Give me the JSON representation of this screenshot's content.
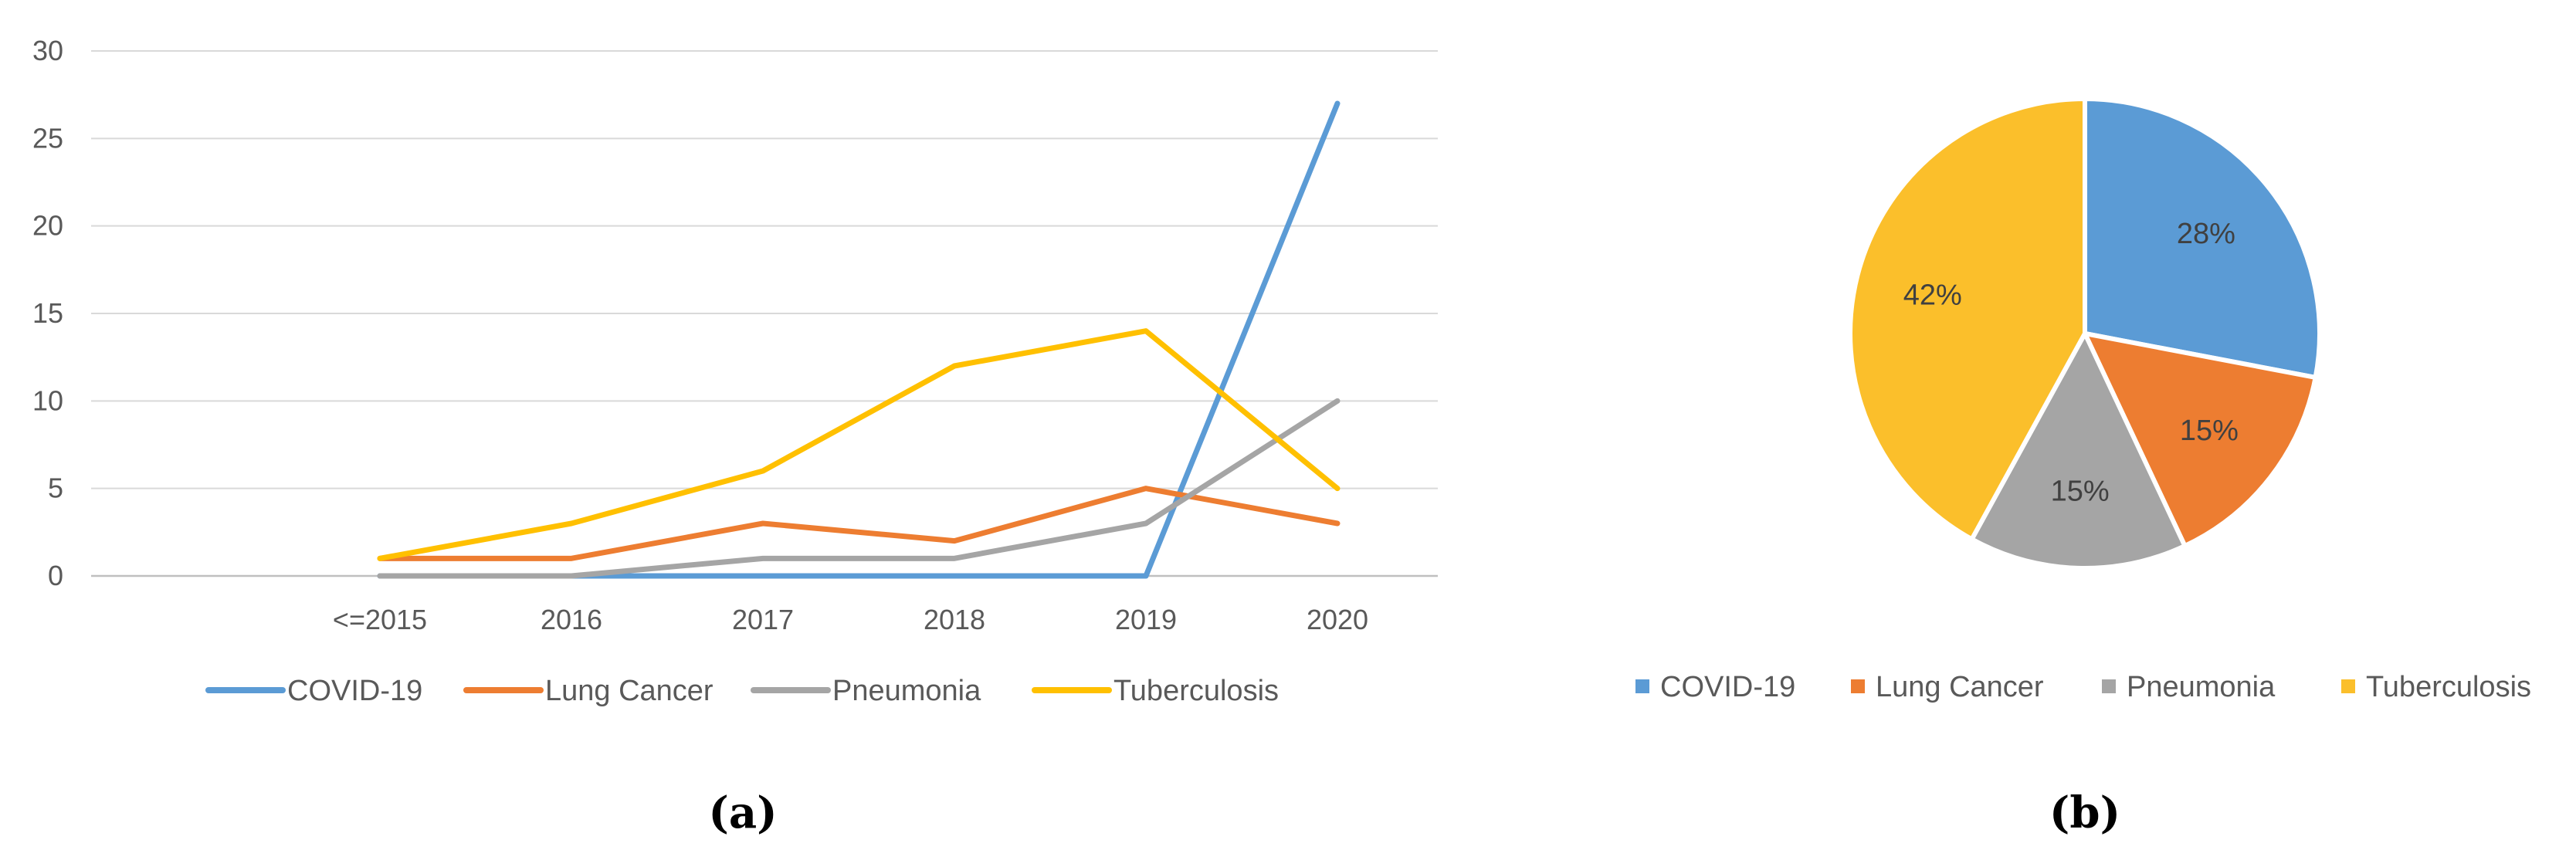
{
  "chart_data": [
    {
      "type": "line",
      "panel_label": "(a)",
      "title": "",
      "xlabel": "",
      "ylabel": "",
      "categories": [
        "<=2015",
        "2016",
        "2017",
        "2018",
        "2019",
        "2020"
      ],
      "ylim": [
        0,
        30
      ],
      "yticks": [
        "0",
        "5",
        "10",
        "15",
        "20",
        "25",
        "30"
      ],
      "grid": true,
      "legend": "bottom",
      "series": [
        {
          "name": "COVID-19",
          "color": "#5B9BD5",
          "values": [
            0,
            0,
            0,
            0,
            0,
            27
          ]
        },
        {
          "name": "Lung Cancer",
          "color": "#ED7D31",
          "values": [
            1,
            1,
            3,
            2,
            5,
            3
          ]
        },
        {
          "name": "Pneumonia",
          "color": "#A5A5A5",
          "values": [
            0,
            0,
            1,
            1,
            3,
            10
          ]
        },
        {
          "name": "Tuberculosis",
          "color": "#FFC000",
          "values": [
            1,
            3,
            6,
            12,
            14,
            5
          ]
        }
      ]
    },
    {
      "type": "pie",
      "panel_label": "(b)",
      "title": "",
      "legend": "bottom",
      "slices": [
        {
          "name": "COVID-19",
          "value": 28,
          "label": "28%",
          "color": "#5B9BD5"
        },
        {
          "name": "Lung Cancer",
          "value": 15,
          "label": "15%",
          "color": "#ED7D31"
        },
        {
          "name": "Pneumonia",
          "value": 15,
          "label": "15%",
          "color": "#A5A5A5"
        },
        {
          "name": "Tuberculosis",
          "value": 42,
          "label": "42%",
          "color": "#FBBF2B"
        }
      ]
    }
  ]
}
